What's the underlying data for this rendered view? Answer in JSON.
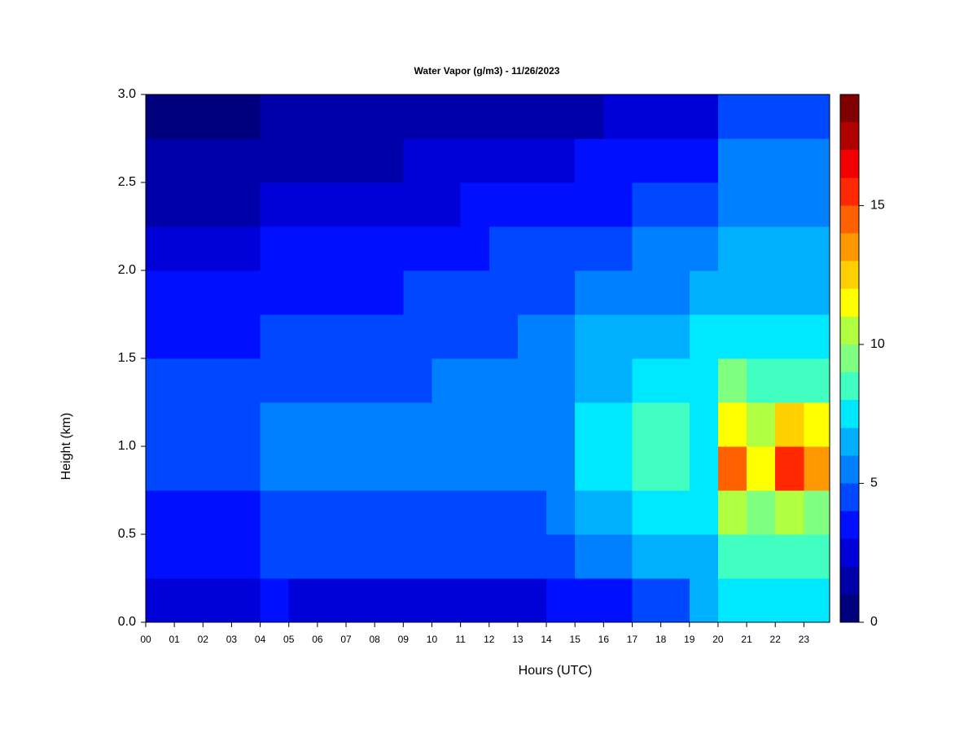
{
  "chart_data": {
    "type": "heatmap",
    "title": "Water Vapor (g/m3) - 11/26/2023",
    "xlabel": "Hours (UTC)",
    "ylabel": "Height (km)",
    "x": [
      0,
      1,
      2,
      3,
      4,
      5,
      6,
      7,
      8,
      9,
      10,
      11,
      12,
      13,
      14,
      15,
      16,
      17,
      18,
      19,
      20,
      21,
      22,
      23
    ],
    "y": [
      0,
      0.25,
      0.5,
      0.75,
      1,
      1.25,
      1.5,
      1.75,
      2,
      2.25,
      2.5,
      2.75
    ],
    "z": [
      [
        2.5,
        2.5,
        2.5,
        2.5,
        3,
        2.5,
        2.5,
        2.5,
        2.5,
        2.5,
        2.5,
        2.5,
        2.5,
        2.5,
        3,
        3,
        3,
        4.5,
        4.5,
        6,
        7.5,
        7.5,
        7.5,
        7.5
      ],
      [
        3.5,
        3.5,
        3.5,
        3.5,
        4,
        4,
        4,
        4,
        4,
        4,
        4.5,
        4.5,
        4.5,
        4.5,
        4.5,
        5,
        5,
        6,
        6,
        6,
        8,
        8,
        8,
        8
      ],
      [
        3.5,
        3.5,
        3.5,
        3.5,
        4,
        4,
        4,
        4,
        4,
        4,
        4.5,
        4.5,
        4.5,
        4.5,
        5,
        6,
        6,
        7.5,
        7.5,
        7,
        10,
        9,
        10,
        9.5
      ],
      [
        4,
        4,
        4,
        4,
        5,
        5,
        5,
        5,
        5,
        5,
        5,
        5,
        5,
        5,
        5.5,
        7,
        7,
        8.5,
        8.5,
        7,
        14,
        11,
        15,
        13
      ],
      [
        4.5,
        4.5,
        4.5,
        4.5,
        5,
        5,
        5,
        5,
        5,
        5,
        5,
        5,
        5,
        5,
        5.5,
        7,
        7,
        8.5,
        8.5,
        7,
        11,
        10,
        12,
        11
      ],
      [
        4,
        4,
        4,
        4,
        4.5,
        4.5,
        4.5,
        4.5,
        4.5,
        4.5,
        5,
        5,
        5,
        5,
        5.5,
        6.5,
        6.5,
        7.5,
        7.5,
        7,
        9,
        8.5,
        8.5,
        8.5
      ],
      [
        3.5,
        3.5,
        3.5,
        3.5,
        4,
        4,
        4,
        4,
        4,
        4.5,
        4.5,
        4.5,
        4.5,
        5,
        5,
        6,
        6,
        6.5,
        6.5,
        7,
        7.5,
        7.5,
        7.5,
        7.5
      ],
      [
        3,
        3,
        3,
        3,
        3.5,
        3.5,
        3.5,
        3.5,
        3.5,
        4,
        4,
        4,
        4,
        4.5,
        4.5,
        5,
        5,
        5.5,
        5.5,
        6,
        6.5,
        6.5,
        6.5,
        6.5
      ],
      [
        2.5,
        2.5,
        2.5,
        2.5,
        3,
        3,
        3,
        3,
        3.5,
        3.5,
        3.5,
        3.5,
        4,
        4,
        4,
        4.5,
        4.5,
        5,
        5,
        5.2,
        6,
        6,
        6,
        6
      ],
      [
        1.5,
        1.5,
        1.5,
        1.5,
        2,
        2,
        2,
        2,
        2.5,
        2.5,
        2.5,
        3,
        3,
        3,
        3.8,
        3.8,
        3.8,
        4,
        4,
        4.5,
        5.5,
        5.5,
        5.5,
        5.5
      ],
      [
        1,
        1,
        1,
        1.5,
        1.5,
        1.5,
        1.5,
        1.5,
        1.2,
        2,
        2,
        2,
        2,
        2.5,
        2.5,
        3,
        3,
        3.5,
        3.5,
        3.5,
        5,
        5,
        5,
        5
      ],
      [
        0.5,
        0.5,
        0.5,
        0.5,
        1,
        1,
        1,
        1,
        1.5,
        1.5,
        1.5,
        1.5,
        1.5,
        1.8,
        1.8,
        1.8,
        2,
        2,
        2,
        2.5,
        4,
        4.5,
        4.5,
        4.5
      ]
    ],
    "xlim": [
      0,
      23.9
    ],
    "ylim": [
      0,
      3
    ],
    "xticks": [
      {
        "value": 0,
        "label": "00"
      },
      {
        "value": 1,
        "label": "01"
      },
      {
        "value": 2,
        "label": "02"
      },
      {
        "value": 3,
        "label": "03"
      },
      {
        "value": 4,
        "label": "04"
      },
      {
        "value": 5,
        "label": "05"
      },
      {
        "value": 6,
        "label": "06"
      },
      {
        "value": 7,
        "label": "07"
      },
      {
        "value": 8,
        "label": "08"
      },
      {
        "value": 9,
        "label": "09"
      },
      10,
      11,
      12,
      13,
      14,
      15,
      16,
      17,
      18,
      19,
      20,
      21,
      22,
      23
    ],
    "yticks": [
      {
        "value": 0,
        "label": "0.0"
      },
      0.5,
      {
        "value": 1,
        "label": "1.0"
      },
      1.5,
      {
        "value": 2,
        "label": "2.0"
      },
      2.5,
      {
        "value": 3,
        "label": "3.0"
      }
    ],
    "colorbar": {
      "levels": [
        0,
        1,
        2,
        3,
        4,
        5,
        6,
        7,
        8,
        9,
        10,
        11,
        12,
        13,
        14,
        15,
        16,
        17,
        18,
        19
      ],
      "colors": [
        "#00007f",
        "#0000a8",
        "#0000d8",
        "#0010ff",
        "#0048ff",
        "#0080ff",
        "#00b0ff",
        "#00e8ff",
        "#40ffc0",
        "#80ff80",
        "#b0ff40",
        "#ffff00",
        "#ffd000",
        "#ff9800",
        "#ff6000",
        "#ff2800",
        "#f00000",
        "#b00000",
        "#800000"
      ],
      "ticks": [
        0,
        5,
        10,
        15
      ]
    }
  }
}
